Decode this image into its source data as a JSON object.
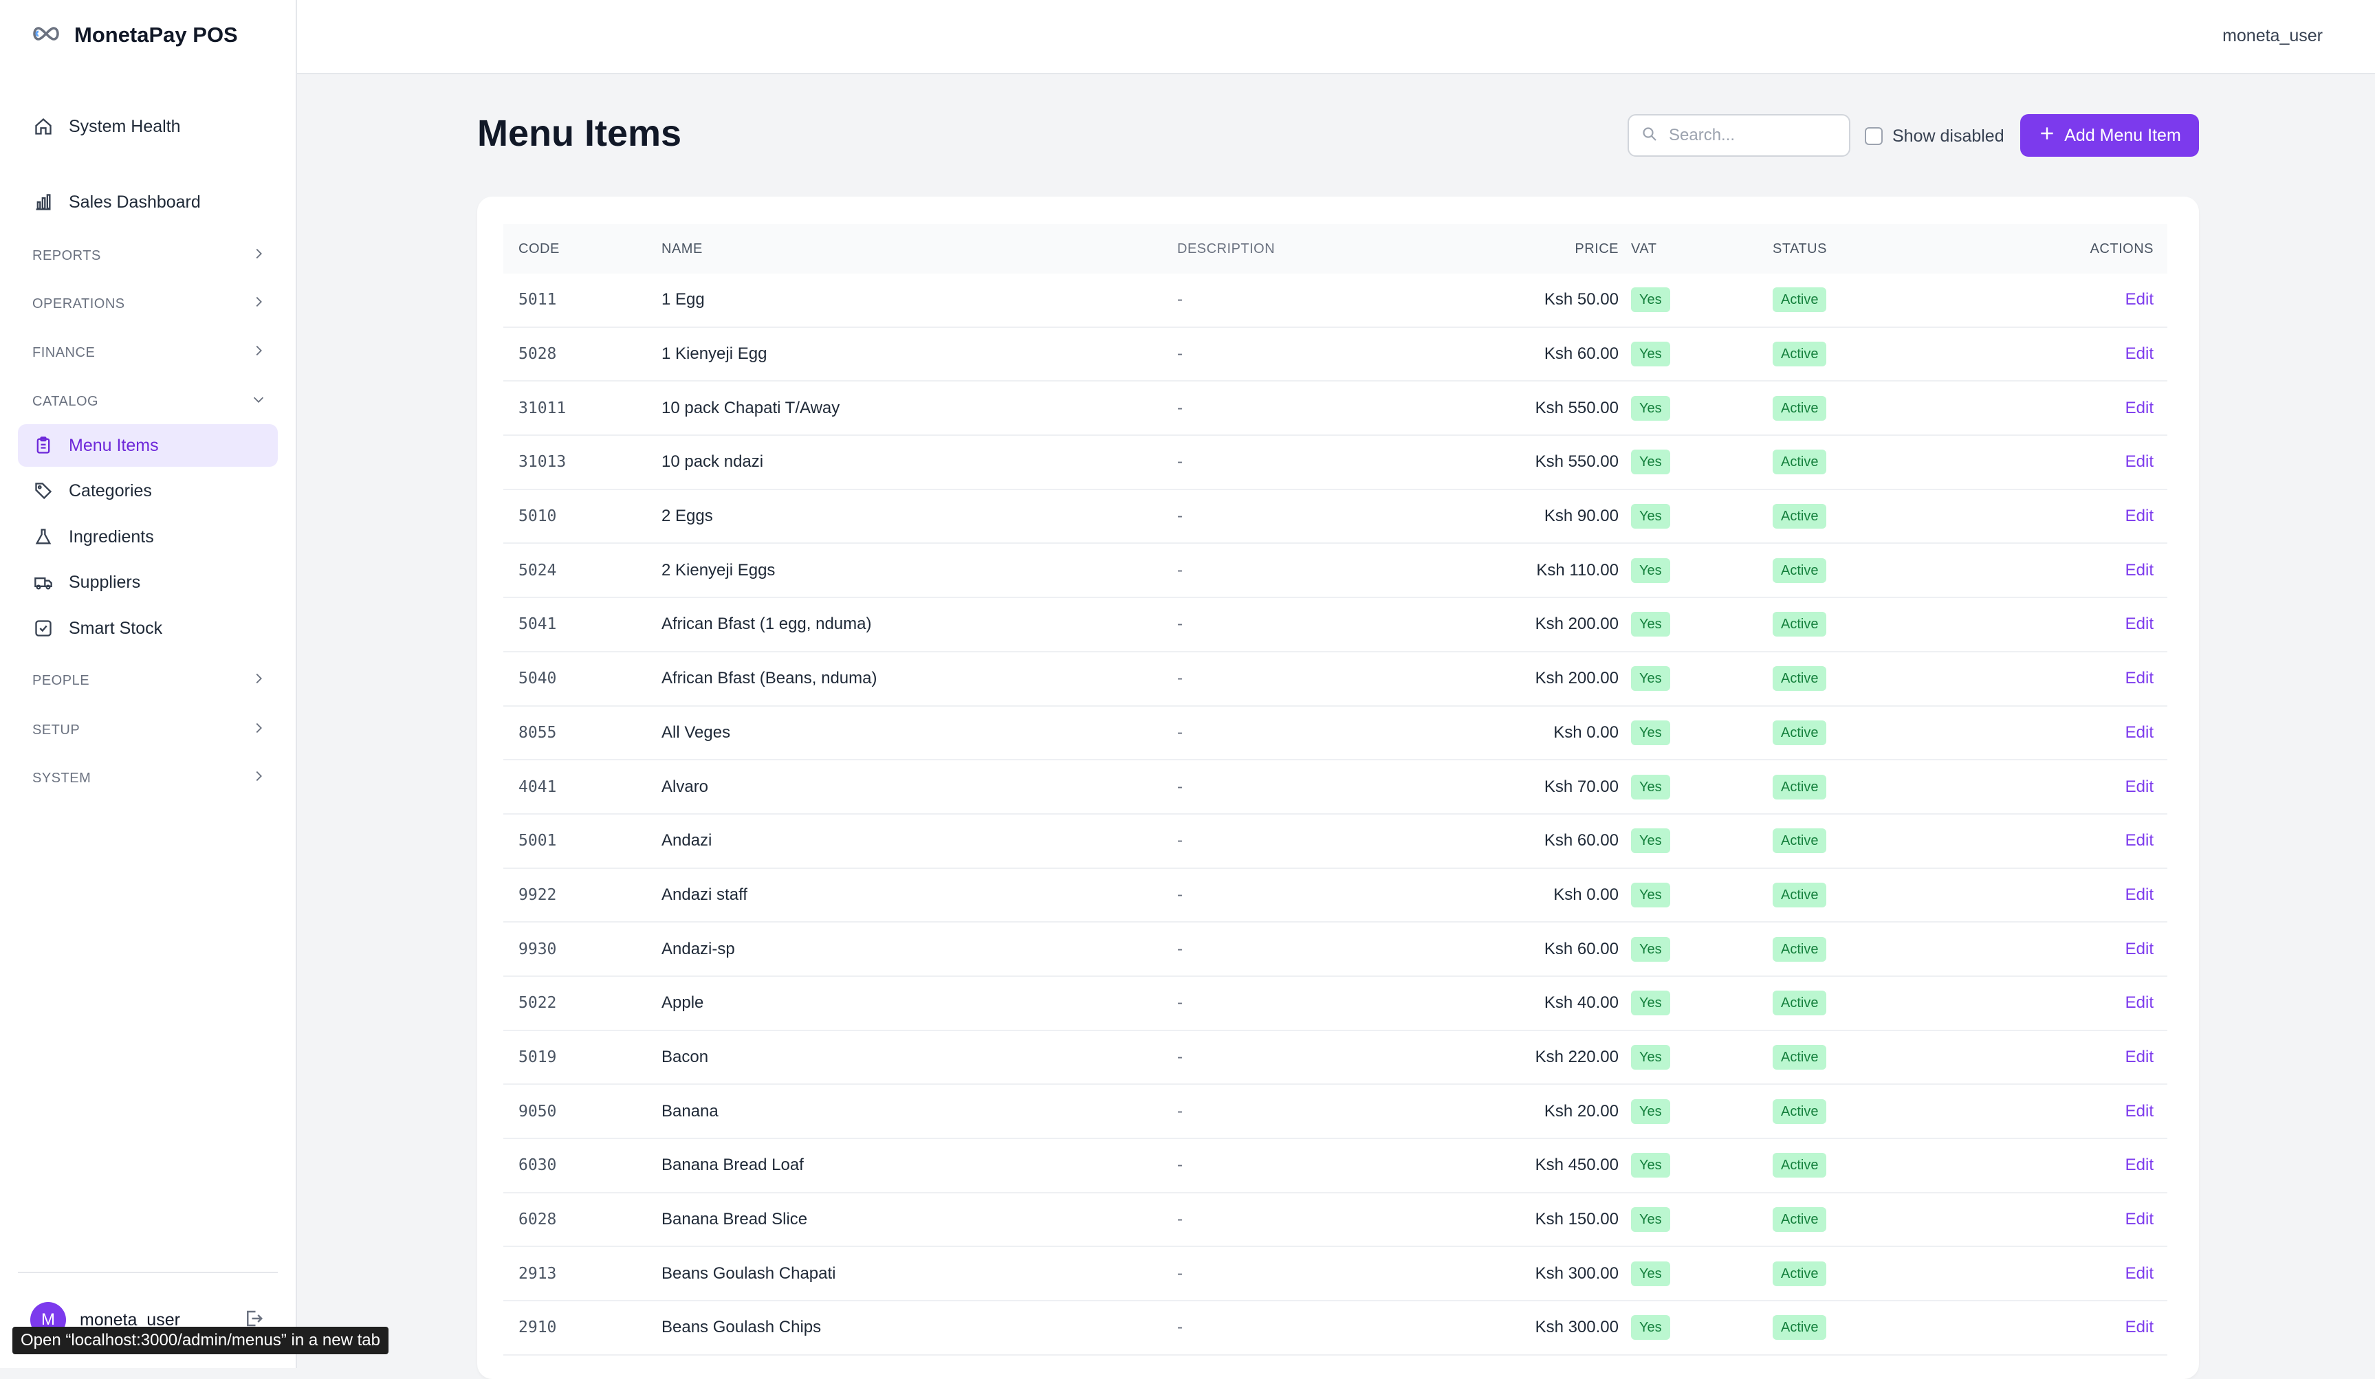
{
  "app": {
    "brand": "MonetaPay POS"
  },
  "sidebar": {
    "top_items": [
      {
        "label": "System Health",
        "icon": "home-icon"
      },
      {
        "label": "Sales Dashboard",
        "icon": "bar-chart-icon"
      }
    ],
    "sections": [
      {
        "label": "REPORTS"
      },
      {
        "label": "OPERATIONS"
      },
      {
        "label": "FINANCE"
      },
      {
        "label": "CATALOG"
      }
    ],
    "catalog_items": [
      {
        "label": "Menu Items",
        "icon": "clipboard-icon",
        "active": true
      },
      {
        "label": "Categories",
        "icon": "tag-icon"
      },
      {
        "label": "Ingredients",
        "icon": "flask-icon"
      },
      {
        "label": "Suppliers",
        "icon": "truck-icon"
      },
      {
        "label": "Smart Stock",
        "icon": "stock-check-icon"
      }
    ],
    "bottom_sections": [
      {
        "label": "PEOPLE"
      },
      {
        "label": "SETUP"
      },
      {
        "label": "SYSTEM"
      }
    ],
    "user": {
      "avatar_initial": "M",
      "name": "moneta_user"
    }
  },
  "topbar": {
    "username": "moneta_user"
  },
  "page": {
    "title": "Menu Items",
    "search_placeholder": "Search...",
    "show_disabled_label": "Show disabled",
    "add_button_label": "Add Menu Item"
  },
  "table": {
    "headers": {
      "code": "CODE",
      "name": "NAME",
      "description": "DESCRIPTION",
      "price": "PRICE",
      "vat": "VAT",
      "status": "STATUS",
      "actions": "ACTIONS"
    },
    "rows": [
      {
        "code": "5011",
        "name": "1 Egg",
        "description": "-",
        "price": "Ksh 50.00",
        "vat": "Yes",
        "status": "Active",
        "action": "Edit"
      },
      {
        "code": "5028",
        "name": "1 Kienyeji Egg",
        "description": "-",
        "price": "Ksh 60.00",
        "vat": "Yes",
        "status": "Active",
        "action": "Edit"
      },
      {
        "code": "31011",
        "name": "10 pack Chapati T/Away",
        "description": "-",
        "price": "Ksh 550.00",
        "vat": "Yes",
        "status": "Active",
        "action": "Edit"
      },
      {
        "code": "31013",
        "name": "10 pack ndazi",
        "description": "-",
        "price": "Ksh 550.00",
        "vat": "Yes",
        "status": "Active",
        "action": "Edit"
      },
      {
        "code": "5010",
        "name": "2 Eggs",
        "description": "-",
        "price": "Ksh 90.00",
        "vat": "Yes",
        "status": "Active",
        "action": "Edit"
      },
      {
        "code": "5024",
        "name": "2 Kienyeji Eggs",
        "description": "-",
        "price": "Ksh 110.00",
        "vat": "Yes",
        "status": "Active",
        "action": "Edit"
      },
      {
        "code": "5041",
        "name": "African Bfast (1 egg, nduma)",
        "description": "-",
        "price": "Ksh 200.00",
        "vat": "Yes",
        "status": "Active",
        "action": "Edit"
      },
      {
        "code": "5040",
        "name": "African Bfast (Beans, nduma)",
        "description": "-",
        "price": "Ksh 200.00",
        "vat": "Yes",
        "status": "Active",
        "action": "Edit"
      },
      {
        "code": "8055",
        "name": "All Veges",
        "description": "-",
        "price": "Ksh 0.00",
        "vat": "Yes",
        "status": "Active",
        "action": "Edit"
      },
      {
        "code": "4041",
        "name": "Alvaro",
        "description": "-",
        "price": "Ksh 70.00",
        "vat": "Yes",
        "status": "Active",
        "action": "Edit"
      },
      {
        "code": "5001",
        "name": "Andazi",
        "description": "-",
        "price": "Ksh 60.00",
        "vat": "Yes",
        "status": "Active",
        "action": "Edit"
      },
      {
        "code": "9922",
        "name": "Andazi staff",
        "description": "-",
        "price": "Ksh 0.00",
        "vat": "Yes",
        "status": "Active",
        "action": "Edit"
      },
      {
        "code": "9930",
        "name": "Andazi-sp",
        "description": "-",
        "price": "Ksh 60.00",
        "vat": "Yes",
        "status": "Active",
        "action": "Edit"
      },
      {
        "code": "5022",
        "name": "Apple",
        "description": "-",
        "price": "Ksh 40.00",
        "vat": "Yes",
        "status": "Active",
        "action": "Edit"
      },
      {
        "code": "5019",
        "name": "Bacon",
        "description": "-",
        "price": "Ksh 220.00",
        "vat": "Yes",
        "status": "Active",
        "action": "Edit"
      },
      {
        "code": "9050",
        "name": "Banana",
        "description": "-",
        "price": "Ksh 20.00",
        "vat": "Yes",
        "status": "Active",
        "action": "Edit"
      },
      {
        "code": "6030",
        "name": "Banana Bread Loaf",
        "description": "-",
        "price": "Ksh 450.00",
        "vat": "Yes",
        "status": "Active",
        "action": "Edit"
      },
      {
        "code": "6028",
        "name": "Banana Bread Slice",
        "description": "-",
        "price": "Ksh 150.00",
        "vat": "Yes",
        "status": "Active",
        "action": "Edit"
      },
      {
        "code": "2913",
        "name": "Beans Goulash Chapati",
        "description": "-",
        "price": "Ksh 300.00",
        "vat": "Yes",
        "status": "Active",
        "action": "Edit"
      },
      {
        "code": "2910",
        "name": "Beans Goulash Chips",
        "description": "-",
        "price": "Ksh 300.00",
        "vat": "Yes",
        "status": "Active",
        "action": "Edit"
      }
    ]
  },
  "status_bar": {
    "link_hint": "Open “localhost:3000/admin/menus” in a new tab"
  },
  "colors": {
    "accent": "#7c3aed",
    "badge_bg": "#bbf7d0",
    "badge_text": "#15803d"
  }
}
